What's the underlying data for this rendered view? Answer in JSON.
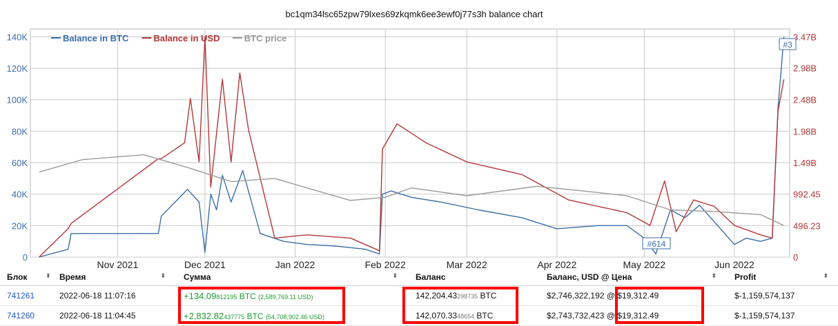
{
  "chart_data": {
    "type": "line",
    "title": "bc1qm34lsc65zpw79lxes69zkqmk6ee3ewf0j77s3h balance chart",
    "x_ticks": [
      "Nov 2021",
      "Dec 2021",
      "Jan 2022",
      "Feb 2022",
      "Mar 2022",
      "Apr 2022",
      "May 2022",
      "Jun 2022"
    ],
    "y_left_ticks": [
      "0",
      "20K",
      "40K",
      "60K",
      "80K",
      "100K",
      "120K",
      "140K"
    ],
    "y_right_ticks": [
      "0",
      "496.23",
      "992.45",
      "1.49B",
      "1.98B",
      "2.48B",
      "2.98B",
      "3.47B"
    ],
    "ylim_left": [
      0,
      145000
    ],
    "grid": true,
    "legend_placement": "top-left",
    "series": [
      {
        "name": "Balance in BTC",
        "color": "#3b6ea8",
        "x": [
          "2021-10-05",
          "2021-10-15",
          "2021-10-16",
          "2021-11-15",
          "2021-11-16",
          "2021-11-25",
          "2021-11-29",
          "2021-12-01",
          "2021-12-03",
          "2021-12-05",
          "2021-12-07",
          "2021-12-10",
          "2021-12-14",
          "2021-12-20",
          "2021-12-28",
          "2022-01-05",
          "2022-01-15",
          "2022-01-25",
          "2022-01-30",
          "2022-01-31",
          "2022-02-03",
          "2022-02-10",
          "2022-02-20",
          "2022-03-05",
          "2022-03-20",
          "2022-04-01",
          "2022-04-15",
          "2022-04-25",
          "2022-05-01",
          "2022-05-05",
          "2022-05-10",
          "2022-05-15",
          "2022-05-20",
          "2022-06-01",
          "2022-06-05",
          "2022-06-10",
          "2022-06-14",
          "2022-06-16",
          "2022-06-18"
        ],
        "y": [
          0,
          5000,
          15000,
          15000,
          26000,
          43000,
          35000,
          3000,
          40000,
          30000,
          52000,
          35000,
          55000,
          15000,
          10000,
          8000,
          7000,
          5000,
          2000,
          40000,
          42000,
          38000,
          35000,
          30000,
          25000,
          18000,
          20000,
          20000,
          12000,
          2000,
          30000,
          25000,
          33000,
          8000,
          12000,
          10000,
          12000,
          95000,
          140000
        ]
      },
      {
        "name": "Balance in USD",
        "color": "#b33636",
        "x": [
          "2021-10-05",
          "2021-10-15",
          "2021-10-16",
          "2021-11-15",
          "2021-11-16",
          "2021-11-24",
          "2021-11-26",
          "2021-11-29",
          "2021-12-01",
          "2021-12-03",
          "2021-12-07",
          "2021-12-10",
          "2021-12-13",
          "2021-12-16",
          "2021-12-25",
          "2022-01-05",
          "2022-01-20",
          "2022-01-30",
          "2022-01-31",
          "2022-02-05",
          "2022-02-15",
          "2022-03-01",
          "2022-03-20",
          "2022-04-05",
          "2022-04-15",
          "2022-04-25",
          "2022-05-03",
          "2022-05-08",
          "2022-05-12",
          "2022-05-18",
          "2022-05-25",
          "2022-06-01",
          "2022-06-10",
          "2022-06-14",
          "2022-06-16",
          "2022-06-18"
        ],
        "y": [
          0,
          450000000,
          530000000,
          1550000000,
          1550000000,
          1800000000,
          2500000000,
          1500000000,
          3470000000,
          1100000000,
          2800000000,
          1500000000,
          2900000000,
          2000000000,
          300000000,
          350000000,
          300000000,
          100000000,
          1700000000,
          2100000000,
          1800000000,
          1500000000,
          1300000000,
          900000000,
          800000000,
          700000000,
          500000000,
          1200000000,
          400000000,
          900000000,
          800000000,
          500000000,
          350000000,
          300000000,
          2300000000,
          2800000000
        ]
      },
      {
        "name": "BTC price",
        "color": "#9a9a9a",
        "x": [
          "2021-10-05",
          "2021-10-20",
          "2021-11-10",
          "2021-11-25",
          "2021-12-10",
          "2021-12-25",
          "2022-01-05",
          "2022-01-20",
          "2022-02-01",
          "2022-02-10",
          "2022-03-01",
          "2022-03-25",
          "2022-04-10",
          "2022-04-25",
          "2022-05-10",
          "2022-05-25",
          "2022-06-10",
          "2022-06-18"
        ],
        "y": [
          54000,
          62000,
          65000,
          57000,
          48000,
          50000,
          44000,
          36000,
          38000,
          44000,
          39000,
          45000,
          42000,
          39000,
          30000,
          29000,
          27000,
          20000
        ]
      }
    ],
    "annotations": [
      "#3",
      "#614"
    ]
  },
  "table": {
    "columns": [
      "Блок",
      "Время",
      "Сумма",
      "Баланс",
      "Баланс, USD @ Цена",
      "Profit"
    ],
    "sort_icon": "⬍",
    "rows": [
      {
        "block": "741261",
        "time": "2022-06-18 11:07:16",
        "amount_main": "+134.09",
        "amount_small": "812195",
        "amount_unit": " BTC",
        "amount_usd": "(2,589,769.11 USD)",
        "balance_main": "142,204.43",
        "balance_small": "298735",
        "balance_unit": " BTC",
        "balance_usd": "$2,746,322,192",
        "price": "@ $19,312.49",
        "profit": "$-1,159,574,137"
      },
      {
        "block": "741260",
        "time": "2022-06-18 11:04:45",
        "amount_main": "+2,832.82",
        "amount_small": "437775",
        "amount_unit": " BTC",
        "amount_usd": "(54,708,902.46 USD)",
        "balance_main": "142,070.33",
        "balance_small": "48654",
        "balance_unit": " BTC",
        "balance_usd": "$2,743,732,423",
        "price": "@ $19,312.49",
        "profit": "$-1,159,574,137"
      }
    ]
  }
}
